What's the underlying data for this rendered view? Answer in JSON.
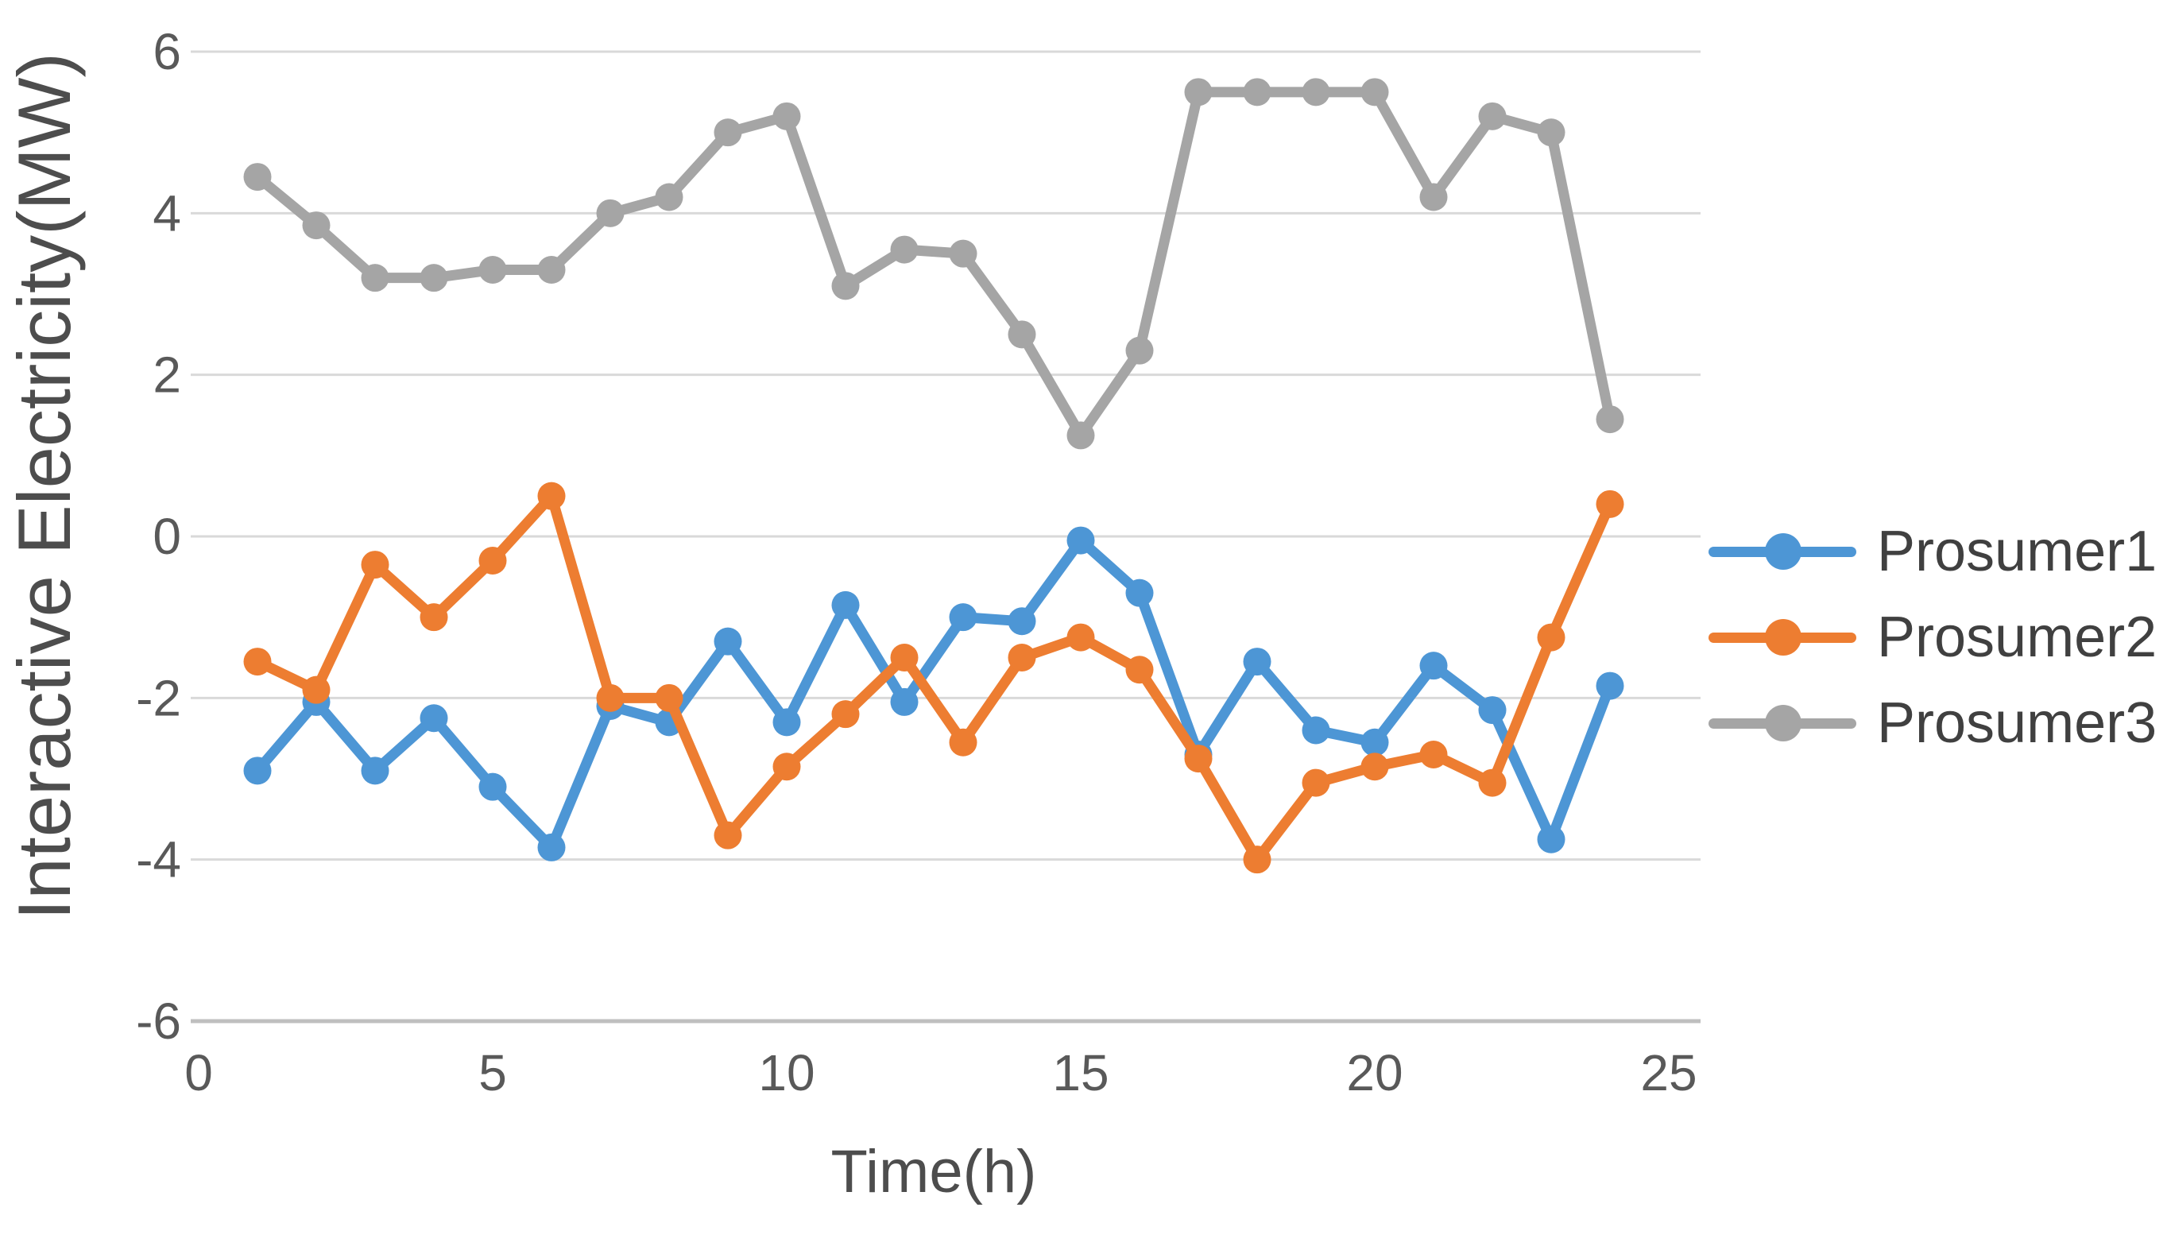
{
  "chart_data": {
    "type": "line",
    "title": "",
    "xlabel": "Time(h)",
    "ylabel": "Interactive Electricity(MW)",
    "xlim": [
      0,
      25
    ],
    "ylim": [
      -6,
      6
    ],
    "x_ticks": [
      0,
      5,
      10,
      15,
      20,
      25
    ],
    "y_ticks": [
      6,
      4,
      2,
      0,
      -2,
      -4,
      -6
    ],
    "grid": "horizontal gridlines at every 2 MW",
    "legend_position": "right",
    "marker": "circle",
    "x": [
      1,
      2,
      3,
      4,
      5,
      6,
      7,
      8,
      9,
      10,
      11,
      12,
      13,
      14,
      15,
      16,
      17,
      18,
      19,
      20,
      21,
      22,
      23,
      24
    ],
    "series": [
      {
        "name": "Prosumer1",
        "color": "#4D96D5",
        "values": [
          -2.9,
          -2.05,
          -2.9,
          -2.25,
          -3.1,
          -3.85,
          -2.1,
          -2.3,
          -1.3,
          -2.3,
          -0.85,
          -2.05,
          -1.0,
          -1.05,
          -0.05,
          -0.7,
          -2.7,
          -1.55,
          -2.4,
          -2.55,
          -1.6,
          -2.15,
          -3.75,
          -1.85
        ]
      },
      {
        "name": "Prosumer2",
        "color": "#ED7D31",
        "values": [
          -1.55,
          -1.9,
          -0.35,
          -1.0,
          -0.3,
          0.5,
          -2.0,
          -2.0,
          -3.7,
          -2.85,
          -2.2,
          -1.5,
          -2.55,
          -1.5,
          -1.25,
          -1.65,
          -2.75,
          -4.0,
          -3.05,
          -2.85,
          -2.7,
          -3.05,
          -1.25,
          0.4
        ]
      },
      {
        "name": "Prosumer3",
        "color": "#A5A5A5",
        "values": [
          4.45,
          3.85,
          3.2,
          3.2,
          3.3,
          3.3,
          4.0,
          4.2,
          5.0,
          5.2,
          3.1,
          3.55,
          3.5,
          2.5,
          1.25,
          2.3,
          5.5,
          5.5,
          5.5,
          5.5,
          4.2,
          5.2,
          5.0,
          1.45
        ]
      }
    ]
  },
  "colors": {
    "background": "#FFFFFF",
    "gridline": "#D9D9D9",
    "axis_line": "#BFBFBF",
    "tick_text": "#595959",
    "axis_title_text": "#4D4D4D",
    "legend_text": "#404040"
  }
}
